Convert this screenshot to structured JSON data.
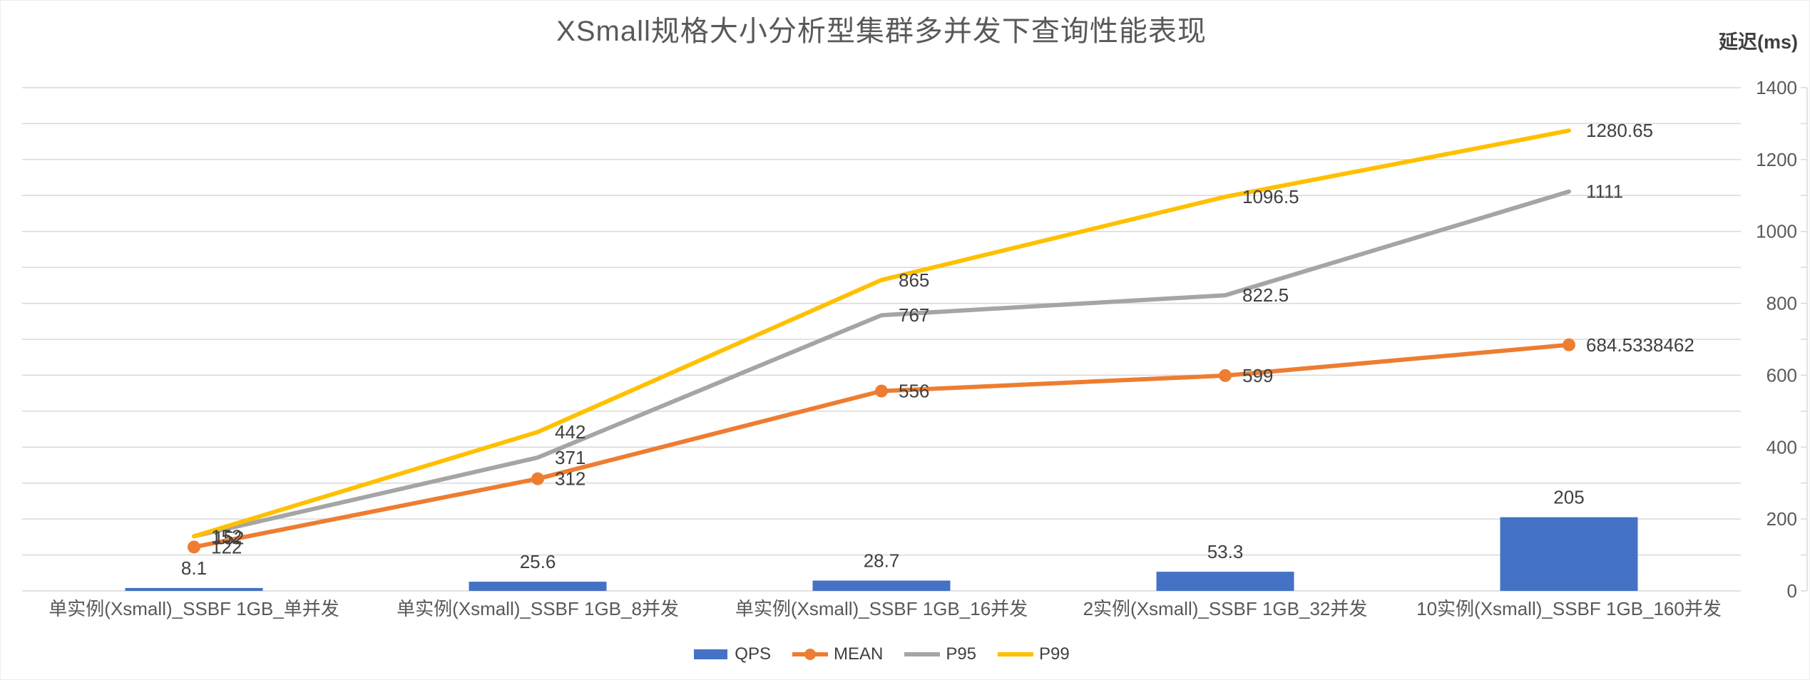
{
  "chart_data": {
    "type": "combo-bar-line",
    "title": "XSmall规格大小分析型集群多并发下查询性能表现",
    "value_axis": {
      "title": "延迟(ms)",
      "side": "right",
      "min": 0,
      "max": 1400,
      "major_tick": 200,
      "minor_gridline": 100,
      "tick_labels": [
        "0",
        "200",
        "400",
        "600",
        "800",
        "1000",
        "1200",
        "1400"
      ]
    },
    "category_axis": {
      "labels_visible": true
    },
    "categories": [
      "单实例(Xsmall)_SSBF 1GB_单并发",
      "单实例(Xsmall)_SSBF 1GB_8并发",
      "单实例(Xsmall)_SSBF 1GB_16并发",
      "2实例(Xsmall)_SSBF 1GB_32并发",
      "10实例(Xsmall)_SSBF 1GB_160并发"
    ],
    "series": [
      {
        "name": "QPS",
        "type": "bar",
        "color": "#4472C4",
        "values": [
          8.1,
          25.6,
          28.7,
          53.3,
          205
        ],
        "labels": [
          "8.1",
          "25.6",
          "28.7",
          "53.3",
          "205"
        ]
      },
      {
        "name": "MEAN",
        "type": "line",
        "marker": "circle",
        "color": "#ED7D31",
        "values": [
          122,
          312,
          556,
          599,
          684.5338462
        ],
        "labels": [
          "122",
          "312",
          "556",
          "599",
          "684.5338462"
        ]
      },
      {
        "name": "P95",
        "type": "line",
        "marker": "none",
        "color": "#A5A5A5",
        "values": [
          152,
          371,
          767,
          822.5,
          1111
        ],
        "labels": [
          "152",
          "371",
          "767",
          "822.5",
          "1111"
        ]
      },
      {
        "name": "P99",
        "type": "line",
        "marker": "none",
        "color": "#FFC000",
        "values": [
          152,
          442,
          865,
          1096.5,
          1280.65
        ],
        "labels": [
          "152",
          "442",
          "865",
          "1096.5",
          "1280.65"
        ]
      }
    ],
    "legend": {
      "position": "bottom",
      "items": [
        "QPS",
        "MEAN",
        "P95",
        "P99"
      ]
    },
    "grid": true,
    "colors": {
      "gridline": "#D9D9D9",
      "axis_line": "#D9D9D9",
      "tick_text": "#595959",
      "category_text": "#595959",
      "data_label_text": "#404040"
    }
  }
}
